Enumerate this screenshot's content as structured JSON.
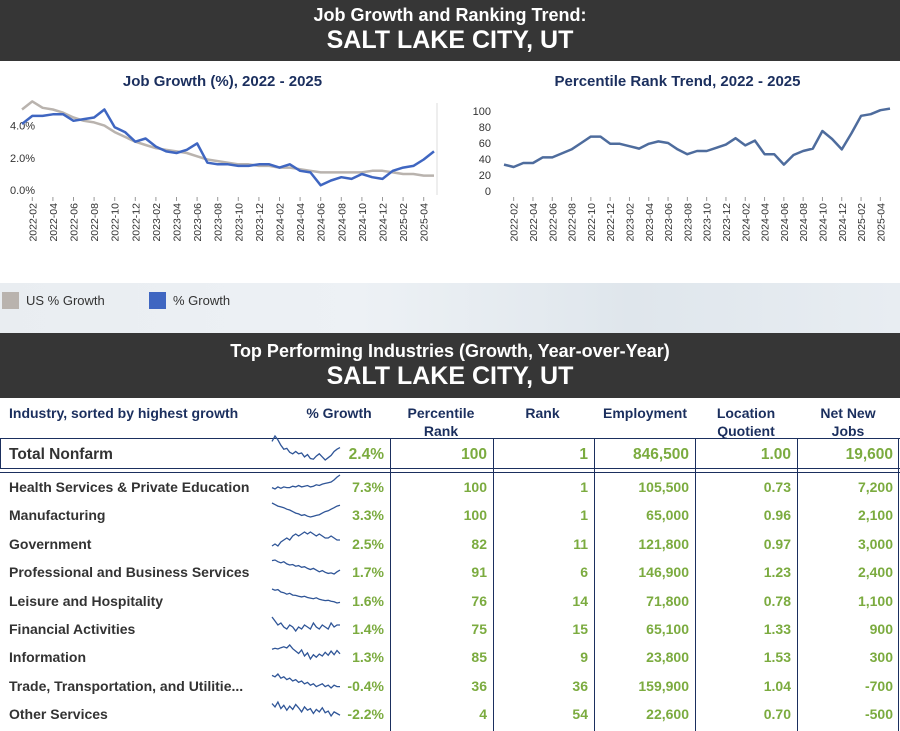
{
  "header1": {
    "subtitle": "Job Growth and Ranking Trend:",
    "title": "SALT LAKE CITY, UT"
  },
  "header2": {
    "subtitle": "Top Performing Industries (Growth, Year-over-Year)",
    "title": "SALT LAKE CITY, UT"
  },
  "legend": {
    "us": "US % Growth",
    "local": "% Growth",
    "us_color": "#b9b3ae",
    "local_color": "#3f66c1"
  },
  "chart_data": [
    {
      "type": "line",
      "title": "Job Growth (%), 2022 - 2025",
      "x": [
        "2022-01",
        "2022-02",
        "2022-03",
        "2022-04",
        "2022-05",
        "2022-06",
        "2022-07",
        "2022-08",
        "2022-09",
        "2022-10",
        "2022-11",
        "2022-12",
        "2023-01",
        "2023-02",
        "2023-03",
        "2023-04",
        "2023-05",
        "2023-06",
        "2023-07",
        "2023-08",
        "2023-09",
        "2023-10",
        "2023-11",
        "2023-12",
        "2024-01",
        "2024-02",
        "2024-03",
        "2024-04",
        "2024-05",
        "2024-06",
        "2024-07",
        "2024-08",
        "2024-09",
        "2024-10",
        "2024-11",
        "2024-12",
        "2025-01",
        "2025-02",
        "2025-03",
        "2025-04",
        "2025-05"
      ],
      "x_ticks": [
        "2022-02",
        "2022-04",
        "2022-06",
        "2022-08",
        "2022-10",
        "2022-12",
        "2023-02",
        "2023-04",
        "2023-06",
        "2023-08",
        "2023-10",
        "2023-12",
        "2024-02",
        "2024-04",
        "2024-06",
        "2024-08",
        "2024-10",
        "2024-12",
        "2025-02",
        "2025-04"
      ],
      "y_ticks": [
        "0.0%",
        "2.0%",
        "4.0%"
      ],
      "ylim": [
        -0.3,
        5.4
      ],
      "series": [
        {
          "name": "US % Growth",
          "values": [
            5.0,
            5.5,
            5.1,
            5.0,
            4.8,
            4.5,
            4.3,
            4.2,
            4.0,
            3.6,
            3.3,
            3.0,
            2.8,
            2.6,
            2.5,
            2.4,
            2.3,
            2.1,
            1.9,
            1.8,
            1.7,
            1.6,
            1.6,
            1.5,
            1.5,
            1.4,
            1.4,
            1.3,
            1.2,
            1.1,
            1.1,
            1.1,
            1.1,
            1.1,
            1.2,
            1.2,
            1.1,
            1.0,
            1.0,
            0.9,
            0.9
          ]
        },
        {
          "name": "% Growth",
          "values": [
            4.1,
            4.6,
            4.6,
            4.7,
            4.7,
            4.3,
            4.4,
            4.5,
            5.0,
            3.9,
            3.6,
            3.0,
            3.2,
            2.7,
            2.4,
            2.3,
            2.5,
            2.9,
            1.7,
            1.6,
            1.6,
            1.5,
            1.5,
            1.6,
            1.6,
            1.4,
            1.6,
            1.2,
            1.1,
            0.3,
            0.6,
            0.8,
            0.7,
            1.0,
            0.8,
            0.7,
            1.2,
            1.4,
            1.5,
            1.9,
            2.4
          ]
        }
      ]
    },
    {
      "type": "line",
      "title": "Percentile Rank Trend, 2022 - 2025",
      "x": [
        "2022-01",
        "2022-02",
        "2022-03",
        "2022-04",
        "2022-05",
        "2022-06",
        "2022-07",
        "2022-08",
        "2022-09",
        "2022-10",
        "2022-11",
        "2022-12",
        "2023-01",
        "2023-02",
        "2023-03",
        "2023-04",
        "2023-05",
        "2023-06",
        "2023-07",
        "2023-08",
        "2023-09",
        "2023-10",
        "2023-11",
        "2023-12",
        "2024-01",
        "2024-02",
        "2024-03",
        "2024-04",
        "2024-05",
        "2024-06",
        "2024-07",
        "2024-08",
        "2024-09",
        "2024-10",
        "2024-11",
        "2024-12",
        "2025-01",
        "2025-02",
        "2025-03",
        "2025-04",
        "2025-05"
      ],
      "x_ticks": [
        "2022-02",
        "2022-04",
        "2022-06",
        "2022-08",
        "2022-10",
        "2022-12",
        "2023-02",
        "2023-04",
        "2023-06",
        "2023-08",
        "2023-10",
        "2023-12",
        "2024-02",
        "2024-04",
        "2024-06",
        "2024-08",
        "2024-10",
        "2024-12",
        "2025-02",
        "2025-04"
      ],
      "y_ticks": [
        "0",
        "20",
        "40",
        "60",
        "80",
        "100"
      ],
      "ylim": [
        -5,
        110
      ],
      "series": [
        {
          "name": "Percentile Rank",
          "values": [
            33,
            30,
            35,
            35,
            42,
            42,
            47,
            52,
            60,
            68,
            68,
            59,
            59,
            56,
            53,
            59,
            62,
            60,
            52,
            46,
            50,
            50,
            54,
            58,
            66,
            57,
            63,
            46,
            46,
            33,
            45,
            50,
            53,
            75,
            65,
            52,
            72,
            94,
            96,
            101,
            103
          ]
        }
      ]
    }
  ],
  "table": {
    "headers": {
      "industry": "Industry, sorted by highest growth",
      "growth": "% Growth",
      "pct_rank_1": "Percentile",
      "pct_rank_2": "Rank",
      "rank": "Rank",
      "employment": "Employment",
      "lq_1": "Location",
      "lq_2": "Quotient",
      "jobs_1": "Net New",
      "jobs_2": "Jobs"
    },
    "total": {
      "name": "Total Nonfarm",
      "growth": "2.4%",
      "pct_rank": "100",
      "rank": "1",
      "employment": "846,500",
      "lq": "1.00",
      "jobs": "19,600",
      "spark": [
        3.2,
        3.9,
        3.4,
        2.7,
        2.2,
        2.3,
        1.8,
        1.6,
        1.9,
        1.6,
        1.7,
        1.2,
        1.5,
        1.0,
        0.9,
        1.3,
        1.6,
        1.2,
        0.8,
        1.1,
        1.4,
        1.9,
        2.2,
        2.4
      ]
    },
    "rows": [
      {
        "name": "Health Services & Private Education",
        "growth": "7.3%",
        "pct_rank": "100",
        "rank": "1",
        "employment": "105,500",
        "lq": "0.73",
        "jobs": "7,200",
        "spark": [
          5.5,
          5.3,
          5.6,
          5.4,
          5.6,
          5.5,
          5.5,
          5.7,
          5.6,
          5.8,
          5.6,
          5.7,
          5.8,
          5.6,
          5.7,
          5.9,
          5.8,
          6.0,
          6.1,
          6.2,
          6.3,
          6.6,
          7.0,
          7.3
        ]
      },
      {
        "name": "Manufacturing",
        "growth": "3.3%",
        "pct_rank": "100",
        "rank": "1",
        "employment": "65,000",
        "lq": "0.96",
        "jobs": "2,100",
        "spark": [
          3.6,
          3.4,
          3.2,
          3.1,
          3.0,
          2.8,
          2.7,
          2.5,
          2.3,
          2.2,
          2.0,
          2.1,
          1.9,
          1.8,
          1.9,
          2.0,
          2.1,
          2.3,
          2.5,
          2.6,
          2.8,
          3.0,
          3.2,
          3.3
        ]
      },
      {
        "name": "Government",
        "growth": "2.5%",
        "pct_rank": "82",
        "rank": "11",
        "employment": "121,800",
        "lq": "0.97",
        "jobs": "3,000",
        "spark": [
          2.2,
          2.3,
          2.2,
          2.4,
          2.5,
          2.6,
          2.5,
          2.7,
          2.8,
          2.7,
          2.8,
          2.9,
          2.8,
          2.9,
          2.8,
          2.7,
          2.8,
          2.7,
          2.6,
          2.6,
          2.7,
          2.6,
          2.5,
          2.5
        ]
      },
      {
        "name": "Professional and Business Services",
        "growth": "1.7%",
        "pct_rank": "91",
        "rank": "6",
        "employment": "146,900",
        "lq": "1.23",
        "jobs": "2,400",
        "spark": [
          3.4,
          3.5,
          3.2,
          3.0,
          3.2,
          2.8,
          2.6,
          2.7,
          2.4,
          2.5,
          2.2,
          2.3,
          2.0,
          1.8,
          2.0,
          1.7,
          1.4,
          1.6,
          1.3,
          1.1,
          1.2,
          1.0,
          1.4,
          1.7
        ]
      },
      {
        "name": "Leisure and Hospitality",
        "growth": "1.6%",
        "pct_rank": "76",
        "rank": "14",
        "employment": "71,800",
        "lq": "0.78",
        "jobs": "1,100",
        "spark": [
          6.0,
          5.6,
          5.8,
          5.0,
          4.8,
          4.3,
          4.6,
          4.0,
          3.9,
          3.6,
          3.4,
          3.6,
          3.2,
          3.0,
          2.8,
          3.1,
          2.6,
          2.4,
          2.2,
          2.3,
          2.0,
          1.8,
          1.4,
          1.6
        ]
      },
      {
        "name": "Financial Activities",
        "growth": "1.4%",
        "pct_rank": "75",
        "rank": "15",
        "employment": "65,100",
        "lq": "1.33",
        "jobs": "900",
        "spark": [
          1.8,
          1.6,
          1.4,
          1.5,
          1.3,
          1.2,
          1.4,
          1.3,
          1.1,
          1.3,
          1.2,
          1.4,
          1.3,
          1.2,
          1.5,
          1.3,
          1.2,
          1.4,
          1.3,
          1.2,
          1.5,
          1.3,
          1.4,
          1.4
        ]
      },
      {
        "name": "Information",
        "growth": "1.3%",
        "pct_rank": "85",
        "rank": "9",
        "employment": "23,800",
        "lq": "1.53",
        "jobs": "300",
        "spark": [
          2.8,
          3.1,
          2.9,
          3.3,
          3.6,
          3.2,
          4.2,
          3.0,
          2.2,
          1.4,
          2.6,
          0.6,
          1.6,
          -0.4,
          1.0,
          0.2,
          1.2,
          0.6,
          1.8,
          0.8,
          2.2,
          1.0,
          2.4,
          1.3
        ]
      },
      {
        "name": "Trade, Transportation, and Utilitie...",
        "growth": "-0.4%",
        "pct_rank": "36",
        "rank": "36",
        "employment": "159,900",
        "lq": "1.04",
        "jobs": "-700",
        "spark": [
          0.4,
          0.3,
          0.5,
          0.2,
          0.3,
          0.1,
          0.2,
          0.0,
          0.1,
          -0.1,
          0.0,
          -0.2,
          -0.1,
          -0.3,
          -0.2,
          -0.4,
          -0.3,
          -0.2,
          -0.4,
          -0.3,
          -0.5,
          -0.3,
          -0.4,
          -0.4
        ]
      },
      {
        "name": "Other Services",
        "growth": "-2.2%",
        "pct_rank": "4",
        "rank": "54",
        "employment": "22,600",
        "lq": "0.70",
        "jobs": "-500",
        "spark": [
          -0.8,
          -1.2,
          -0.6,
          -1.4,
          -1.0,
          -1.6,
          -1.1,
          -1.5,
          -0.9,
          -1.3,
          -1.8,
          -1.2,
          -1.6,
          -1.4,
          -2.0,
          -1.5,
          -1.8,
          -1.3,
          -1.9,
          -1.7,
          -2.3,
          -1.8,
          -2.0,
          -2.2
        ]
      }
    ]
  }
}
